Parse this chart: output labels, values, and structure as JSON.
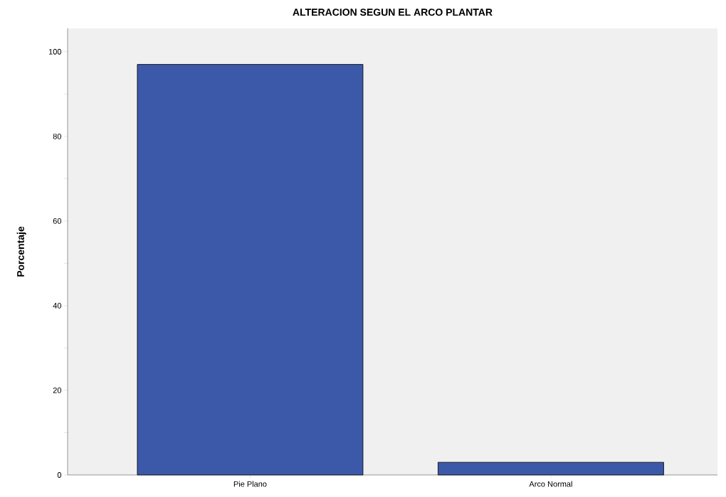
{
  "chart_data": {
    "type": "bar",
    "title": "ALTERACION SEGUN EL ARCO PLANTAR",
    "ylabel": "Porcentaje",
    "categories": [
      "Pie Plano",
      "Arco Normal"
    ],
    "values": [
      97,
      3
    ],
    "color": "#3c58a8",
    "ylim": [
      0,
      105.5
    ],
    "yticks": [
      0,
      {
        "value": 10,
        "label": null
      },
      20,
      {
        "value": 30,
        "label": null
      },
      40,
      {
        "value": 50,
        "label": null
      },
      60,
      {
        "value": 70,
        "label": null
      },
      80,
      {
        "value": 90,
        "label": null
      },
      100
    ],
    "grid": false
  }
}
